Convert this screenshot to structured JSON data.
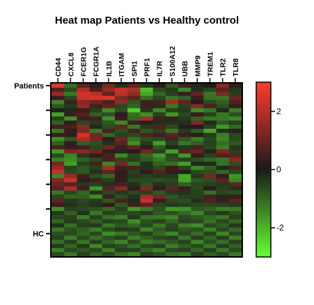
{
  "chart_data": {
    "type": "heatmap",
    "title": "Heat map Patients vs Healthy control",
    "columns": [
      "CD44",
      "CXCL8",
      "FCER1G",
      "FCGR1A",
      "IL1B",
      "ITGAM",
      "SPI1",
      "PRF1",
      "IL7R",
      "S100A12",
      "UBB",
      "MMP9",
      "TREM1",
      "TLR2",
      "TLR8"
    ],
    "row_labels": [
      {
        "label": "Patients",
        "row": 0
      },
      {
        "label": "HC",
        "row": 36
      }
    ],
    "colorscale": {
      "min": -3,
      "max": 3,
      "low_color": "#66ff33",
      "mid_color": "#1a1a1a",
      "high_color": "#ff3b2f",
      "ticks": [
        2,
        0,
        -2
      ],
      "tick_labels": [
        "2",
        "0",
        "-2"
      ]
    },
    "values": [
      [
        2.6,
        -1.1,
        0.8,
        0.3,
        1.2,
        -0.3,
        0.9,
        -0.4,
        0.2,
        -0.8,
        0.5,
        -0.2,
        0.1,
        1.4,
        0.3
      ],
      [
        0.7,
        -0.6,
        1.9,
        0.6,
        1.6,
        2.2,
        1.9,
        -2.1,
        -0.6,
        -0.4,
        -1.4,
        -0.3,
        -0.6,
        0.8,
        -0.4
      ],
      [
        1.6,
        -1.2,
        2.4,
        2.1,
        0.9,
        2.1,
        1.5,
        -1.8,
        -1.0,
        -0.5,
        0.4,
        1.0,
        -1.2,
        1.3,
        -0.5
      ],
      [
        0.4,
        -0.6,
        2.3,
        2.4,
        2.5,
        1.3,
        0.8,
        -1.1,
        -0.6,
        -1.2,
        -0.9,
        0.4,
        -1.1,
        -1.2,
        1.0
      ],
      [
        -1.4,
        0.5,
        1.4,
        1.1,
        0.6,
        1.5,
        -0.8,
        0.5,
        0.6,
        1.8,
        0.9,
        0.2,
        -0.6,
        -0.9,
        0.7
      ],
      [
        -0.8,
        -0.4,
        1.5,
        0.5,
        0.9,
        -0.6,
        -1.0,
        0.5,
        -0.3,
        -1.2,
        -0.5,
        1.4,
        0.6,
        -0.7,
        0.4
      ],
      [
        -0.1,
        -0.2,
        0.4,
        -0.5,
        -1.5,
        -0.7,
        -2.3,
        -0.4,
        -1.4,
        -0.5,
        -0.4,
        -1.5,
        -1.2,
        -0.2,
        -1.3
      ],
      [
        -1.7,
        0.4,
        0.7,
        -0.9,
        -0.7,
        0.2,
        -1.1,
        -1.5,
        -0.5,
        -1.6,
        -0.6,
        0.3,
        -0.5,
        -1.2,
        -0.7
      ],
      [
        -0.5,
        -1.5,
        0.5,
        0.5,
        -1.5,
        0.4,
        -1.0,
        1.8,
        0.5,
        0.4,
        -0.4,
        -0.9,
        -1.2,
        -1.2,
        -1.4
      ],
      [
        -0.9,
        0.3,
        -0.6,
        -0.4,
        -0.8,
        -1.4,
        0.5,
        0.3,
        -0.3,
        -0.3,
        -0.3,
        1.3,
        -0.2,
        -0.8,
        -0.5
      ],
      [
        0.5,
        0.6,
        1.4,
        -0.2,
        -0.7,
        0.9,
        -1.2,
        -0.4,
        0.7,
        -0.6,
        0.2,
        0.1,
        -0.5,
        -1.6,
        -1.0
      ],
      [
        -1.2,
        0.3,
        1.3,
        -1.2,
        0.6,
        -0.7,
        0.6,
        -0.8,
        -0.5,
        -1.2,
        -0.4,
        -0.8,
        -1.8,
        -0.3,
        0.3
      ],
      [
        0.4,
        0.3,
        2.4,
        1.1,
        -1.0,
        -0.5,
        -0.6,
        0.7,
        0.5,
        0.8,
        0.4,
        0.2,
        -0.4,
        -1.3,
        -0.6
      ],
      [
        -1.5,
        -0.8,
        1.9,
        1.2,
        0.3,
        1.1,
        -1.1,
        -0.7,
        -0.6,
        0.6,
        -0.8,
        -1.3,
        -0.6,
        -1.4,
        -0.6
      ],
      [
        -0.9,
        0.3,
        -0.9,
        -0.7,
        -0.3,
        0.8,
        -1.5,
        -0.4,
        -1.7,
        -0.5,
        -1.2,
        -0.9,
        -0.5,
        -1.1,
        -0.8
      ],
      [
        0.6,
        0.4,
        0.5,
        -0.6,
        1.1,
        0.5,
        0.9,
        0.3,
        -0.8,
        -0.2,
        -0.4,
        0.6,
        -0.6,
        -1.3,
        -0.4
      ],
      [
        -1.6,
        1.2,
        1.4,
        1.1,
        0.3,
        -0.2,
        0.2,
        1.1,
        -0.5,
        -1.7,
        0.7,
        1.0,
        -0.2,
        1.3,
        -0.5
      ],
      [
        -0.6,
        -1.4,
        -0.4,
        0.3,
        0.6,
        -1.4,
        -0.6,
        -1.0,
        -1.6,
        -0.6,
        -1.6,
        0.3,
        -0.5,
        0.7,
        0.8
      ],
      [
        -1.3,
        -1.5,
        -0.9,
        -0.6,
        0.6,
        -0.6,
        -0.5,
        -0.8,
        -1.2,
        -0.7,
        -0.5,
        -0.7,
        -1.0,
        -1.2,
        1.4
      ],
      [
        1.2,
        -1.7,
        -0.5,
        0.6,
        -1.4,
        1.2,
        -1.1,
        -0.3,
        -0.9,
        -1.1,
        -1.7,
        -0.2,
        -0.2,
        -1.1,
        -0.7
      ],
      [
        1.6,
        -0.5,
        -0.8,
        -0.5,
        1.8,
        0.5,
        0.6,
        -0.3,
        -0.6,
        0.4,
        -0.5,
        -1.4,
        -0.9,
        -0.2,
        0.7
      ],
      [
        2.2,
        -0.6,
        -0.8,
        -0.3,
        0.9,
        0.3,
        -0.5,
        0.3,
        0.8,
        0.3,
        -0.1,
        -0.6,
        -0.7,
        -1.0,
        -0.6
      ],
      [
        -1.4,
        1.6,
        0.5,
        -0.7,
        -1.0,
        0.3,
        -0.4,
        -0.5,
        -0.4,
        -0.4,
        -1.8,
        -0.4,
        1.2,
        0.3,
        -1.6
      ],
      [
        1.3,
        2.3,
        0.3,
        0.5,
        -0.5,
        0.3,
        -0.6,
        -0.6,
        -0.7,
        -0.6,
        -1.8,
        -0.8,
        -0.7,
        0.8,
        -1.4
      ],
      [
        1.0,
        0.8,
        -0.4,
        -0.5,
        -0.3,
        0.6,
        -0.3,
        -0.7,
        -0.3,
        -0.5,
        -0.9,
        -0.6,
        -0.5,
        -0.4,
        0.9
      ],
      [
        0.8,
        1.9,
        0.5,
        -1.6,
        0.8,
        1.4,
        0.3,
        1.3,
        0.3,
        0.9,
        0.4,
        -0.6,
        0.2,
        -0.5,
        -0.3
      ],
      [
        -1.2,
        -0.6,
        -1.0,
        -0.3,
        -0.6,
        -0.4,
        -0.6,
        -0.5,
        -0.8,
        -0.4,
        -0.3,
        -0.5,
        -1.1,
        -0.6,
        -0.7
      ],
      [
        -0.6,
        -1.0,
        -0.9,
        -1.5,
        0.5,
        -0.7,
        -0.3,
        1.8,
        1.2,
        -0.8,
        -0.5,
        -0.5,
        0.6,
        -0.2,
        0.4
      ],
      [
        0.9,
        -0.4,
        -0.6,
        -0.4,
        -0.8,
        0.6,
        -0.2,
        2.2,
        0.4,
        -0.6,
        -0.7,
        -0.3,
        0.7,
        0.4,
        0.8
      ],
      [
        0.4,
        -0.3,
        -0.5,
        -0.3,
        0.3,
        -0.8,
        0.5,
        0.8,
        -0.6,
        -0.4,
        -0.5,
        -0.6,
        -0.6,
        -0.5,
        -0.4
      ],
      [
        -1.5,
        -0.5,
        -0.6,
        -0.7,
        -1.0,
        -0.5,
        -1.6,
        -1.2,
        -0.7,
        -1.6,
        -1.5,
        -0.8,
        -0.9,
        -1.3,
        -1.2
      ],
      [
        -0.4,
        -0.9,
        -0.3,
        -1.2,
        -0.5,
        -0.7,
        -0.6,
        -0.4,
        -0.8,
        -0.7,
        -1.0,
        -1.4,
        -0.6,
        -0.4,
        -0.7
      ],
      [
        -0.6,
        -0.5,
        -1.3,
        -0.5,
        -1.1,
        -1.3,
        -0.4,
        -1.1,
        -1.2,
        -1.4,
        -0.6,
        -0.8,
        -1.0,
        -1.2,
        -0.5
      ],
      [
        -1.0,
        -0.4,
        -0.6,
        -0.9,
        -0.5,
        -0.6,
        -1.5,
        -0.7,
        -0.5,
        -1.0,
        -0.5,
        -0.6,
        -1.1,
        -0.6,
        -1.0
      ],
      [
        -0.3,
        -1.1,
        -0.5,
        -0.4,
        -1.2,
        -0.8,
        -1.0,
        -0.6,
        -1.2,
        -0.6,
        -1.3,
        -1.5,
        -0.6,
        -0.9,
        -0.4
      ],
      [
        -1.2,
        -0.7,
        -0.9,
        -1.3,
        -0.6,
        -0.4,
        -0.5,
        -1.4,
        -0.8,
        -0.5,
        -0.8,
        -0.7,
        -1.3,
        -0.6,
        -1.0
      ],
      [
        -0.7,
        -0.6,
        -1.0,
        -0.6,
        -1.5,
        -1.2,
        -0.8,
        -0.5,
        -1.0,
        -1.4,
        -0.6,
        -1.1,
        -0.5,
        -1.4,
        -0.6
      ],
      [
        -0.5,
        -1.3,
        -0.6,
        -1.1,
        -0.7,
        -0.5,
        -1.3,
        -0.9,
        -0.6,
        -0.5,
        -1.2,
        -0.5,
        -1.0,
        -0.5,
        -1.3
      ],
      [
        -1.1,
        -0.5,
        -1.2,
        -0.5,
        -1.0,
        -1.4,
        -0.6,
        -1.3,
        -1.1,
        -0.8,
        -0.5,
        -1.4,
        -0.7,
        -1.1,
        -0.5
      ],
      [
        -0.4,
        -1.0,
        -0.4,
        -1.4,
        -0.5,
        -0.7,
        -1.1,
        -0.6,
        -0.5,
        -1.3,
        -0.9,
        -0.6,
        -1.2,
        -0.5,
        -0.9
      ],
      [
        -1.3,
        -0.6,
        -0.8,
        -0.6,
        -1.3,
        -0.5,
        -0.5,
        -1.0,
        -1.3,
        -0.6,
        -0.5,
        -1.0,
        -0.5,
        -1.2,
        -0.6
      ],
      [
        -0.6,
        -1.2,
        -0.5,
        -1.0,
        -0.6,
        -1.1,
        -1.4,
        -0.5,
        -0.7,
        -1.1,
        -1.3,
        -0.5,
        -0.9,
        -0.6,
        -1.2
      ]
    ]
  }
}
